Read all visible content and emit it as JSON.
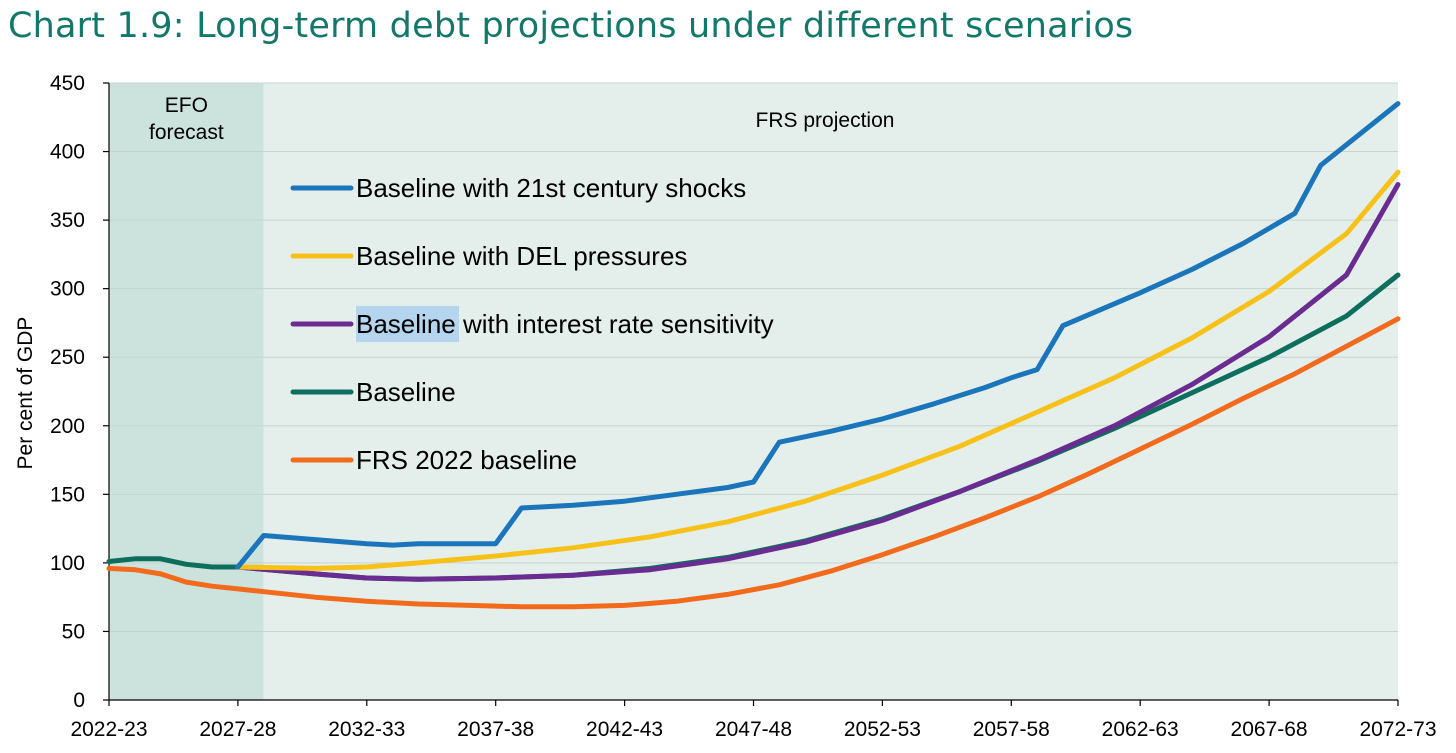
{
  "colors": {
    "title": "#13786a",
    "efo_band": "#cce3dd",
    "projection_band": "#e4efec",
    "gridline": "#c6d4d0"
  },
  "chart_data": {
    "type": "line",
    "title": "Chart 1.9: Long-term debt projections under different scenarios",
    "xlabel": "",
    "ylabel": "Per cent of GDP",
    "ylim": [
      0,
      450
    ],
    "yticks": [
      0,
      50,
      100,
      150,
      200,
      250,
      300,
      350,
      400,
      450
    ],
    "x_start_year": 2022,
    "x_end_year": 2072,
    "x_tick_labels": [
      "2022-23",
      "2027-28",
      "2032-33",
      "2037-38",
      "2042-43",
      "2047-48",
      "2052-53",
      "2057-58",
      "2062-63",
      "2067-68",
      "2072-73"
    ],
    "x_tick_years": [
      2022,
      2027,
      2032,
      2037,
      2042,
      2047,
      2052,
      2057,
      2062,
      2067,
      2072
    ],
    "regions": [
      {
        "label_lines": [
          "EFO",
          "forecast"
        ],
        "from_year": 2022,
        "to_year": 2028,
        "color": "#cce3dd"
      },
      {
        "label_lines": [
          "FRS projection"
        ],
        "from_year": 2028,
        "to_year": 2072,
        "color": "#e4efec"
      }
    ],
    "grid": true,
    "series": [
      {
        "name": "Baseline with 21st century shocks",
        "color": "#1b75bb",
        "points": [
          [
            2027,
            97
          ],
          [
            2028,
            120
          ],
          [
            2030,
            117
          ],
          [
            2032,
            114
          ],
          [
            2033,
            113
          ],
          [
            2034,
            114
          ],
          [
            2036,
            114
          ],
          [
            2037,
            114
          ],
          [
            2038,
            140
          ],
          [
            2040,
            142
          ],
          [
            2042,
            145
          ],
          [
            2044,
            150
          ],
          [
            2046,
            155
          ],
          [
            2047,
            159
          ],
          [
            2048,
            188
          ],
          [
            2050,
            196
          ],
          [
            2052,
            205
          ],
          [
            2054,
            216
          ],
          [
            2056,
            228
          ],
          [
            2057,
            235
          ],
          [
            2058,
            241
          ],
          [
            2059,
            273
          ],
          [
            2062,
            297
          ],
          [
            2064,
            314
          ],
          [
            2066,
            333
          ],
          [
            2068,
            355
          ],
          [
            2069,
            390
          ],
          [
            2072,
            435
          ]
        ]
      },
      {
        "name": "Baseline with DEL pressures",
        "color": "#f8c11a",
        "points": [
          [
            2027,
            97
          ],
          [
            2030,
            96
          ],
          [
            2032,
            97
          ],
          [
            2034,
            100
          ],
          [
            2037,
            105
          ],
          [
            2040,
            111
          ],
          [
            2043,
            119
          ],
          [
            2046,
            130
          ],
          [
            2049,
            145
          ],
          [
            2052,
            164
          ],
          [
            2055,
            185
          ],
          [
            2058,
            210
          ],
          [
            2061,
            235
          ],
          [
            2064,
            264
          ],
          [
            2067,
            298
          ],
          [
            2070,
            340
          ],
          [
            2072,
            385
          ]
        ]
      },
      {
        "name": "Baseline with interest rate sensitivity",
        "color": "#6a2c91",
        "points": [
          [
            2027,
            97
          ],
          [
            2030,
            92
          ],
          [
            2032,
            89
          ],
          [
            2034,
            88
          ],
          [
            2037,
            89
          ],
          [
            2040,
            91
          ],
          [
            2043,
            95
          ],
          [
            2046,
            103
          ],
          [
            2049,
            115
          ],
          [
            2052,
            131
          ],
          [
            2055,
            152
          ],
          [
            2058,
            175
          ],
          [
            2061,
            200
          ],
          [
            2064,
            230
          ],
          [
            2067,
            265
          ],
          [
            2070,
            310
          ],
          [
            2072,
            376
          ]
        ]
      },
      {
        "name": "Baseline",
        "color": "#0e6e5e",
        "points": [
          [
            2022,
            101
          ],
          [
            2023,
            103
          ],
          [
            2024,
            103
          ],
          [
            2025,
            99
          ],
          [
            2026,
            97
          ],
          [
            2027,
            97
          ],
          [
            2030,
            92
          ],
          [
            2032,
            89
          ],
          [
            2034,
            88
          ],
          [
            2037,
            89
          ],
          [
            2040,
            91
          ],
          [
            2043,
            96
          ],
          [
            2046,
            104
          ],
          [
            2049,
            116
          ],
          [
            2052,
            132
          ],
          [
            2055,
            152
          ],
          [
            2058,
            174
          ],
          [
            2061,
            198
          ],
          [
            2064,
            224
          ],
          [
            2067,
            250
          ],
          [
            2070,
            280
          ],
          [
            2072,
            310
          ]
        ]
      },
      {
        "name": "FRS 2022 baseline",
        "color": "#f26b1d",
        "points": [
          [
            2022,
            96
          ],
          [
            2023,
            95
          ],
          [
            2024,
            92
          ],
          [
            2025,
            86
          ],
          [
            2026,
            83
          ],
          [
            2027,
            81
          ],
          [
            2030,
            75
          ],
          [
            2032,
            72
          ],
          [
            2034,
            70
          ],
          [
            2036,
            69
          ],
          [
            2038,
            68
          ],
          [
            2040,
            68
          ],
          [
            2042,
            69
          ],
          [
            2044,
            72
          ],
          [
            2046,
            77
          ],
          [
            2048,
            84
          ],
          [
            2050,
            94
          ],
          [
            2052,
            106
          ],
          [
            2054,
            119
          ],
          [
            2056,
            133
          ],
          [
            2058,
            148
          ],
          [
            2060,
            165
          ],
          [
            2062,
            183
          ],
          [
            2064,
            201
          ],
          [
            2066,
            220
          ],
          [
            2068,
            238
          ],
          [
            2070,
            258
          ],
          [
            2072,
            278
          ]
        ]
      }
    ],
    "legend_order": [
      "Baseline with 21st century shocks",
      "Baseline with DEL pressures",
      "Baseline with interest rate sensitivity",
      "Baseline",
      "FRS 2022 baseline"
    ],
    "legend_placement": "upper-left inside plot",
    "highlighted_legend_word": "Baseline"
  }
}
